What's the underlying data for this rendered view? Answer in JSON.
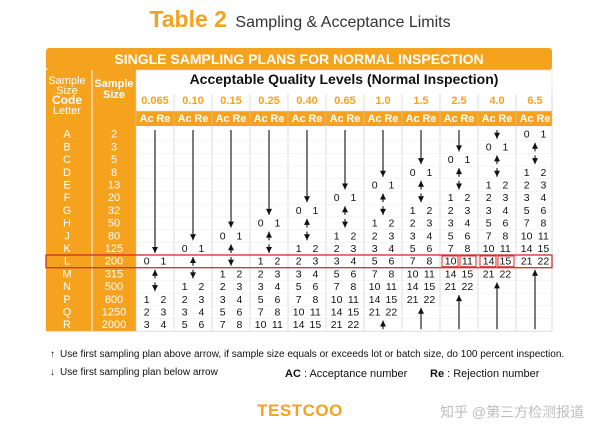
{
  "title": {
    "table": "Table 2",
    "subtitle": "Sampling & Acceptance Limits"
  },
  "banner": "SINGLE SAMPLING PLANS FOR NORMAL INSPECTION",
  "header": {
    "code_letter": [
      "Sample",
      "Size",
      "Code",
      "Letter"
    ],
    "sample_size": [
      "Sample",
      "Size"
    ],
    "aql_title": "Acceptable Quality Levels (Normal Inspection)",
    "ac": "Ac",
    "re": "Re"
  },
  "aql_levels": [
    "0.065",
    "0.10",
    "0.15",
    "0.25",
    "0.40",
    "0.65",
    "1.0",
    "1.5",
    "2.5",
    "4.0",
    "6.5"
  ],
  "rows": [
    {
      "letter": "A",
      "size": "2",
      "cells": [
        "D",
        "D",
        "D",
        "D",
        "D",
        "D",
        "D",
        "D",
        "D",
        "D",
        "0 1"
      ]
    },
    {
      "letter": "B",
      "size": "3",
      "cells": [
        "D",
        "D",
        "D",
        "D",
        "D",
        "D",
        "D",
        "D",
        "D",
        "0 1",
        "U"
      ]
    },
    {
      "letter": "C",
      "size": "5",
      "cells": [
        "D",
        "D",
        "D",
        "D",
        "D",
        "D",
        "D",
        "D",
        "0 1",
        "U",
        "D"
      ]
    },
    {
      "letter": "D",
      "size": "8",
      "cells": [
        "D",
        "D",
        "D",
        "D",
        "D",
        "D",
        "D",
        "0 1",
        "U",
        "D",
        "1 2"
      ]
    },
    {
      "letter": "E",
      "size": "13",
      "cells": [
        "D",
        "D",
        "D",
        "D",
        "D",
        "D",
        "0 1",
        "U",
        "D",
        "1 2",
        "2 3"
      ]
    },
    {
      "letter": "F",
      "size": "20",
      "cells": [
        "D",
        "D",
        "D",
        "D",
        "D",
        "0 1",
        "U",
        "D",
        "1 2",
        "2 3",
        "3 4"
      ]
    },
    {
      "letter": "G",
      "size": "32",
      "cells": [
        "D",
        "D",
        "D",
        "D",
        "0 1",
        "U",
        "D",
        "1 2",
        "2 3",
        "3 4",
        "5 6"
      ]
    },
    {
      "letter": "H",
      "size": "50",
      "cells": [
        "D",
        "D",
        "D",
        "0 1",
        "U",
        "D",
        "1 2",
        "2 3",
        "3 4",
        "5 6",
        "7 8"
      ]
    },
    {
      "letter": "J",
      "size": "80",
      "cells": [
        "D",
        "D",
        "0 1",
        "U",
        "D",
        "1 2",
        "2 3",
        "3 4",
        "5 6",
        "7 8",
        "10 11"
      ]
    },
    {
      "letter": "K",
      "size": "125",
      "cells": [
        "D",
        "0 1",
        "U",
        "D",
        "1 2",
        "2 3",
        "3 4",
        "5 6",
        "7 8",
        "10 11",
        "14 15"
      ]
    },
    {
      "letter": "L",
      "size": "200",
      "cells": [
        "0 1",
        "U",
        "D",
        "1 2",
        "2 3",
        "3 4",
        "5 6",
        "7 8",
        "10 11",
        "14 15",
        "21 22"
      ]
    },
    {
      "letter": "M",
      "size": "315",
      "cells": [
        "U",
        "D",
        "1 2",
        "2 3",
        "3 4",
        "5 6",
        "7 8",
        "10 11",
        "14 15",
        "21 22",
        "U"
      ]
    },
    {
      "letter": "N",
      "size": "500",
      "cells": [
        "D",
        "1 2",
        "2 3",
        "3 4",
        "5 6",
        "7 8",
        "10 11",
        "14 15",
        "21 22",
        "U",
        "U"
      ]
    },
    {
      "letter": "P",
      "size": "800",
      "cells": [
        "1 2",
        "2 3",
        "3 4",
        "5 6",
        "7 8",
        "10 11",
        "14 15",
        "21 22",
        "U",
        "U",
        "U"
      ]
    },
    {
      "letter": "Q",
      "size": "1250",
      "cells": [
        "2 3",
        "3 4",
        "5 6",
        "7 8",
        "10 11",
        "14 15",
        "21 22",
        "U",
        "U",
        "U",
        "U"
      ]
    },
    {
      "letter": "R",
      "size": "2000",
      "cells": [
        "3 4",
        "5 6",
        "7 8",
        "10 11",
        "14 15",
        "21 22",
        "U",
        "U",
        "U",
        "U",
        "U"
      ]
    }
  ],
  "notes": {
    "up": "Use first sampling plan above arrow, if sample size equals or exceeds lot or batch size, do 100 percent inspection.",
    "down": "Use first sampling plan below arrow"
  },
  "legend": {
    "ac_key": "AC",
    "ac_text": " : Acceptance number",
    "re_key": "Re",
    "re_text": " : Rejection number"
  },
  "brand": "TESTCOO",
  "watermark": "知乎 @第三方检测报道",
  "colors": {
    "orange": "#f5a21f",
    "highlight_row": "#d62b2b",
    "highlight_cells": "#d62b2b",
    "text": "#111111"
  },
  "highlight": {
    "row": "L",
    "columns": [
      "2.5",
      "4.0"
    ]
  }
}
